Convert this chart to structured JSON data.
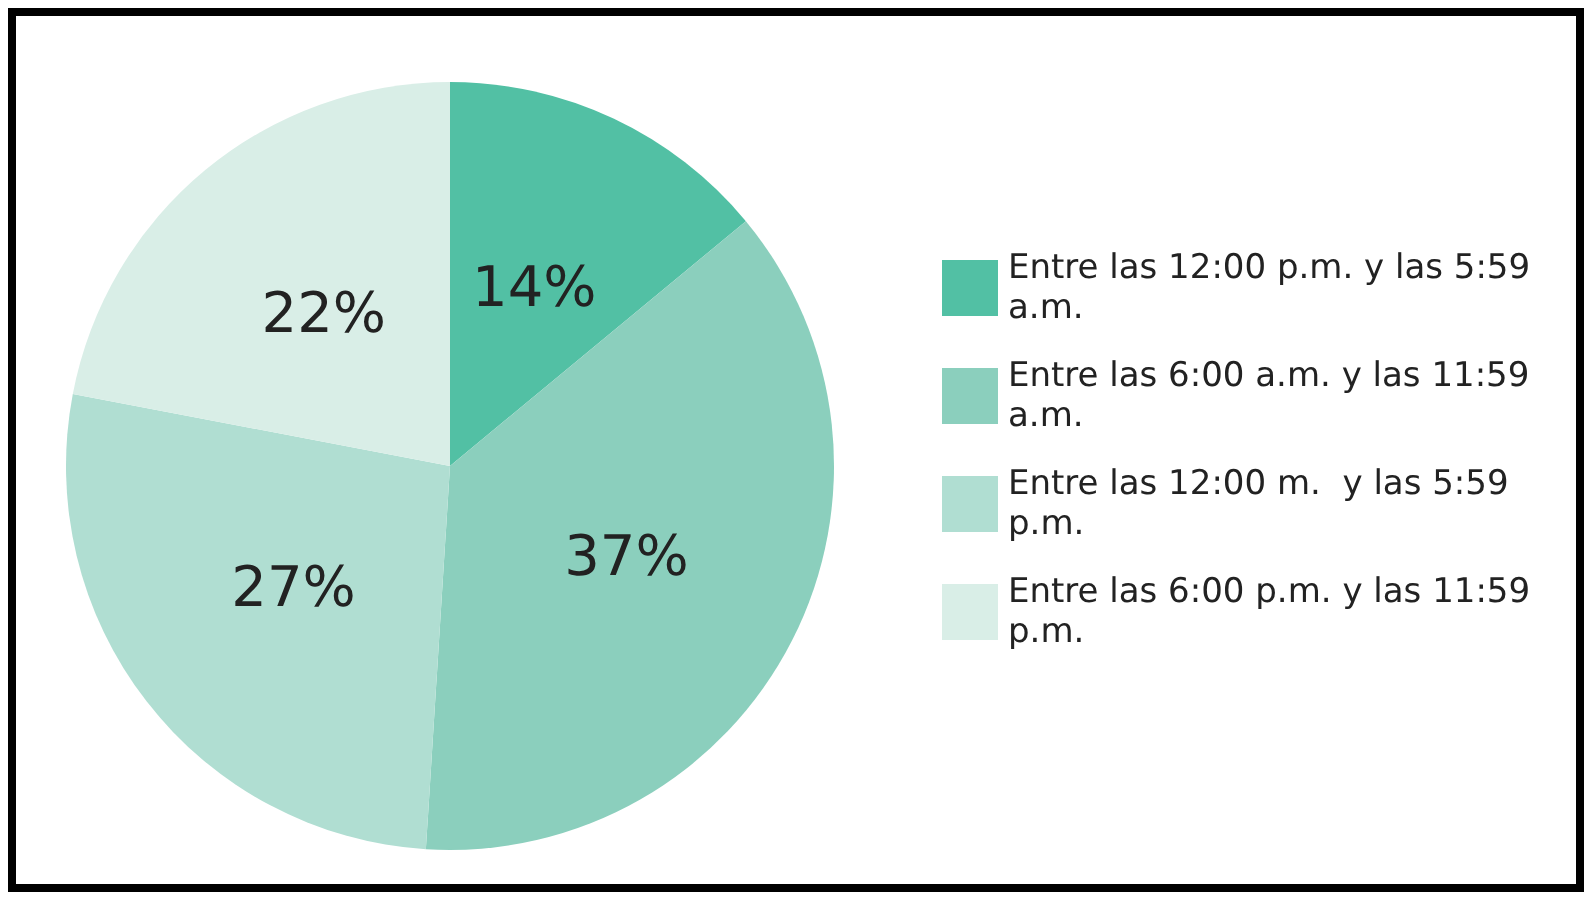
{
  "chart_data": {
    "type": "pie",
    "categories": [
      "Entre las 12:00 p.m. y las 5:59 a.m.",
      "Entre las 6:00 a.m. y las 11:59 a.m.",
      "Entre las 12:00 m.  y las 5:59 p.m.",
      "Entre las 6:00 p.m. y las 11:59 p.m."
    ],
    "values": [
      14,
      37,
      27,
      22
    ],
    "colors": [
      "#52c0a4",
      "#8bcfbd",
      "#b0ded2",
      "#d9eee7"
    ],
    "value_labels": [
      "14%",
      "37%",
      "27%",
      "22%"
    ],
    "legend": "right"
  }
}
